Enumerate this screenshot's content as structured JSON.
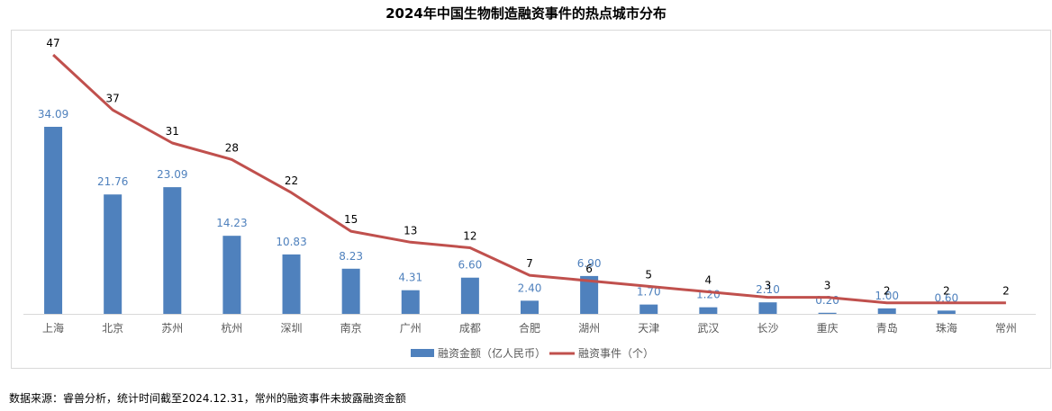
{
  "source_note": "数据来源：睿兽分析，统计时间截至2024.12.31，常州的融资事件未披露融资金额",
  "chart_data": {
    "type": "bar",
    "title": "2024年中国生物制造融资事件的热点城市分布",
    "categories": [
      "上海",
      "北京",
      "苏州",
      "杭州",
      "深圳",
      "南京",
      "广州",
      "成都",
      "合肥",
      "湖州",
      "天津",
      "武汉",
      "长沙",
      "重庆",
      "青岛",
      "珠海",
      "常州"
    ],
    "series": [
      {
        "name": "融资金额（亿人民币）",
        "type": "bar",
        "color": "#4f81bd",
        "values": [
          34.09,
          21.76,
          23.09,
          14.23,
          10.83,
          8.23,
          4.31,
          6.6,
          2.4,
          6.9,
          1.7,
          1.2,
          2.1,
          0.2,
          1.0,
          0.6,
          null
        ],
        "labels": [
          "34.09",
          "21.76",
          "23.09",
          "14.23",
          "10.83",
          "8.23",
          "4.31",
          "6.60",
          "2.40",
          "6.90",
          "1.70",
          "1.20",
          "2.10",
          "0.20",
          "1.00",
          "0.60",
          ""
        ]
      },
      {
        "name": "融资事件（个）",
        "type": "line",
        "color": "#c0504d",
        "values": [
          47,
          37,
          31,
          28,
          22,
          15,
          13,
          12,
          7,
          6,
          5,
          4,
          3,
          3,
          2,
          2,
          2
        ]
      }
    ],
    "grid": false,
    "legend": "bottom"
  }
}
